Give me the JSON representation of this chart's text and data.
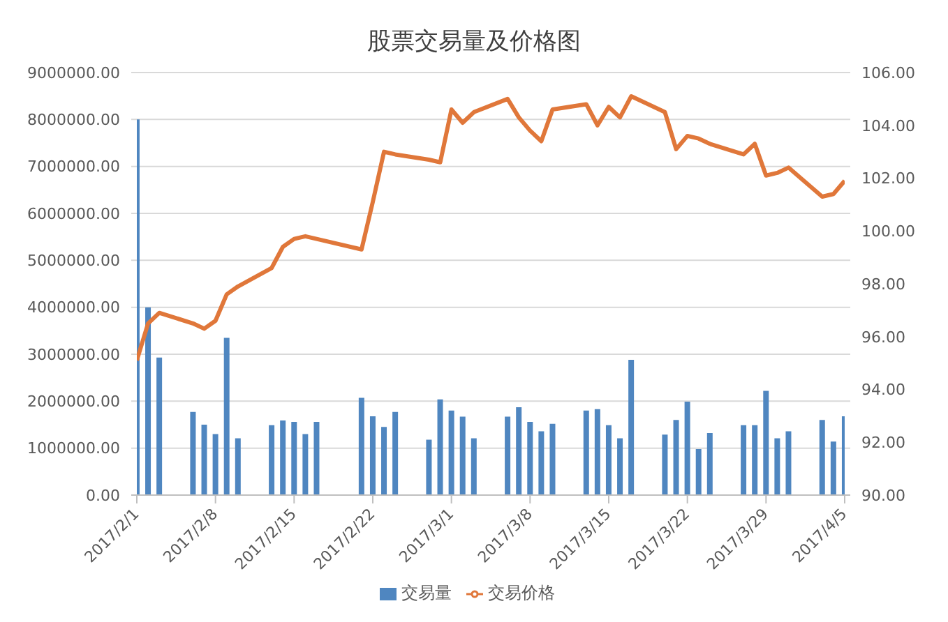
{
  "chart_data": {
    "type": "bar",
    "title": "股票交易量及价格图",
    "x": [
      "2017-02-01",
      "2017-02-02",
      "2017-02-03",
      "2017-02-06",
      "2017-02-07",
      "2017-02-08",
      "2017-02-09",
      "2017-02-10",
      "2017-02-13",
      "2017-02-14",
      "2017-02-15",
      "2017-02-16",
      "2017-02-17",
      "2017-02-21",
      "2017-02-22",
      "2017-02-23",
      "2017-02-24",
      "2017-02-27",
      "2017-02-28",
      "2017-03-01",
      "2017-03-02",
      "2017-03-03",
      "2017-03-06",
      "2017-03-07",
      "2017-03-08",
      "2017-03-09",
      "2017-03-10",
      "2017-03-13",
      "2017-03-14",
      "2017-03-15",
      "2017-03-16",
      "2017-03-17",
      "2017-03-20",
      "2017-03-21",
      "2017-03-22",
      "2017-03-23",
      "2017-03-24",
      "2017-03-27",
      "2017-03-28",
      "2017-03-29",
      "2017-03-30",
      "2017-03-31",
      "2017-04-03",
      "2017-04-04",
      "2017-04-05"
    ],
    "series": [
      {
        "name": "交易量",
        "color": "#4f86c0",
        "values": [
          8000000,
          4000000,
          2930000,
          1770000,
          1500000,
          1300000,
          3350000,
          1210000,
          1490000,
          1590000,
          1560000,
          1300000,
          1560000,
          2070000,
          1680000,
          1450000,
          1770000,
          1180000,
          2040000,
          1800000,
          1670000,
          1210000,
          1670000,
          1870000,
          1560000,
          1360000,
          1520000,
          1800000,
          1830000,
          1490000,
          1210000,
          2880000,
          1290000,
          1600000,
          1990000,
          980000,
          1320000,
          1490000,
          1490000,
          2220000,
          1210000,
          1360000,
          1600000,
          1140000,
          1680000
        ]
      },
      {
        "name": "交易价格",
        "type": "line",
        "axis": "y2",
        "color": "#e0773a",
        "values": [
          95.1,
          96.5,
          96.9,
          96.5,
          96.3,
          96.6,
          97.6,
          97.9,
          98.6,
          99.4,
          99.7,
          99.8,
          99.7,
          99.3,
          101.1,
          103.0,
          102.9,
          102.7,
          102.6,
          104.6,
          104.1,
          104.5,
          105.0,
          104.3,
          103.8,
          103.4,
          104.6,
          104.8,
          104.0,
          104.7,
          104.3,
          105.1,
          104.5,
          103.1,
          103.6,
          103.5,
          103.3,
          102.9,
          103.3,
          102.1,
          102.2,
          102.4,
          101.3,
          101.4,
          101.9
        ]
      }
    ],
    "xlim": [
      "2017-02-01",
      "2017-04-05"
    ],
    "xticks": [
      {
        "value": "2017-02-01",
        "label": "2017/2/1"
      },
      {
        "value": "2017-02-08",
        "label": "2017/2/8"
      },
      {
        "value": "2017-02-15",
        "label": "2017/2/15"
      },
      {
        "value": "2017-02-22",
        "label": "2017/2/22"
      },
      {
        "value": "2017-03-01",
        "label": "2017/3/1"
      },
      {
        "value": "2017-03-08",
        "label": "2017/3/8"
      },
      {
        "value": "2017-03-15",
        "label": "2017/3/15"
      },
      {
        "value": "2017-03-22",
        "label": "2017/3/22"
      },
      {
        "value": "2017-03-29",
        "label": "2017/3/29"
      },
      {
        "value": "2017-04-05",
        "label": "2017/4/5"
      }
    ],
    "ylim": [
      0,
      9000000
    ],
    "yticks": [
      {
        "value": 0,
        "label": "0.00"
      },
      {
        "value": 1000000,
        "label": "1000000.00"
      },
      {
        "value": 2000000,
        "label": "2000000.00"
      },
      {
        "value": 3000000,
        "label": "3000000.00"
      },
      {
        "value": 4000000,
        "label": "4000000.00"
      },
      {
        "value": 5000000,
        "label": "5000000.00"
      },
      {
        "value": 6000000,
        "label": "6000000.00"
      },
      {
        "value": 7000000,
        "label": "7000000.00"
      },
      {
        "value": 8000000,
        "label": "8000000.00"
      },
      {
        "value": 9000000,
        "label": "9000000.00"
      }
    ],
    "y2lim": [
      90,
      106
    ],
    "y2ticks": [
      {
        "value": 90,
        "label": "90.00"
      },
      {
        "value": 92,
        "label": "92.00"
      },
      {
        "value": 94,
        "label": "94.00"
      },
      {
        "value": 96,
        "label": "96.00"
      },
      {
        "value": 98,
        "label": "98.00"
      },
      {
        "value": 100,
        "label": "100.00"
      },
      {
        "value": 102,
        "label": "102.00"
      },
      {
        "value": 104,
        "label": "104.00"
      },
      {
        "value": 106,
        "label": "106.00"
      }
    ],
    "grid": "y",
    "legend": "bottom"
  }
}
